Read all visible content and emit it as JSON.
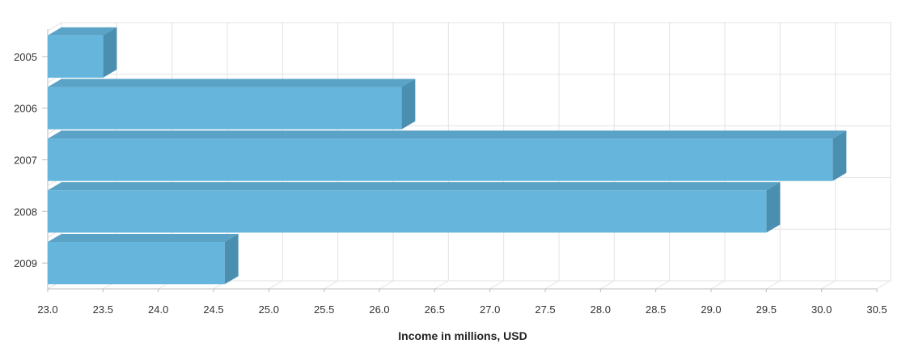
{
  "chart_data": {
    "type": "bar",
    "orientation": "horizontal",
    "three_d": true,
    "categories": [
      "2005",
      "2006",
      "2007",
      "2008",
      "2009"
    ],
    "values": [
      23.5,
      26.2,
      30.1,
      29.5,
      24.6
    ],
    "xlabel": "Income in millions, USD",
    "ylabel": "",
    "xlim": [
      23.0,
      30.5
    ],
    "xticks": [
      "23.0",
      "23.5",
      "24.0",
      "24.5",
      "25.0",
      "25.5",
      "26.0",
      "26.5",
      "27.0",
      "27.5",
      "28.0",
      "28.5",
      "29.0",
      "29.5",
      "30.0",
      "30.5"
    ],
    "grid": true,
    "legend": "none",
    "colors": {
      "bar_front": "#66b5dc",
      "bar_top": "#5aa2c6",
      "bar_side": "#4b8fb0",
      "grid": "#e3e3e3",
      "axis": "#bdbdbd"
    }
  }
}
